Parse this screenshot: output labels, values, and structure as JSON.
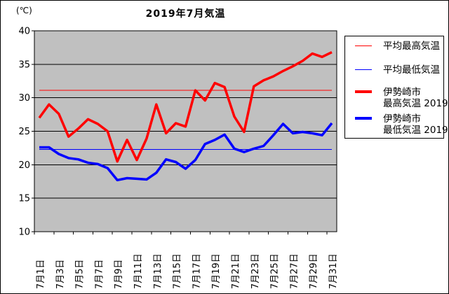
{
  "title": "2019年7月気温",
  "unit_label": "(℃)",
  "legend": {
    "avg_max": "平均最高気温",
    "avg_min": "平均最低気温",
    "max_2019_line1": "伊勢崎市",
    "max_2019_line2": "最高気温 2019",
    "min_2019_line1": "伊勢崎市",
    "min_2019_line2": "最低気温 2019"
  },
  "chart_data": {
    "type": "line",
    "title": "2019年7月気温",
    "ylabel": "(℃)",
    "ylim": [
      10,
      40
    ],
    "ytick_labels": [
      "40",
      "35",
      "30",
      "25",
      "20",
      "15",
      "10"
    ],
    "ytick_values": [
      40,
      35,
      30,
      25,
      20,
      15,
      10
    ],
    "n_days": 31,
    "xtick_labels": [
      "7月1日",
      "7月3日",
      "7月5日",
      "7月7日",
      "7月9日",
      "7月11日",
      "7月13日",
      "7月15日",
      "7月17日",
      "7月19日",
      "7月21日",
      "7月23日",
      "7月25日",
      "7月27日",
      "7月29日",
      "7月31日"
    ],
    "xtick_days": [
      1,
      3,
      5,
      7,
      9,
      11,
      13,
      15,
      17,
      19,
      21,
      23,
      25,
      27,
      29,
      31
    ],
    "grid": true,
    "plot_bg": "#C0C0C0",
    "grid_color": "#000000",
    "legend_position": "right",
    "reference_lines": [
      {
        "name": "平均最高気温",
        "value": 31.1,
        "color": "#FF0000",
        "width": 1
      },
      {
        "name": "平均最低気温",
        "value": 22.3,
        "color": "#0000FF",
        "width": 1
      }
    ],
    "series": [
      {
        "name": "伊勢崎市最高気温2019",
        "color": "#FF0000",
        "width": 3.5,
        "values": [
          27.0,
          29.0,
          27.6,
          24.2,
          25.4,
          26.8,
          26.1,
          25.0,
          20.5,
          23.7,
          20.7,
          23.9,
          29.0,
          24.7,
          26.2,
          25.7,
          31.1,
          29.6,
          32.2,
          31.6,
          27.2,
          24.9,
          31.7,
          32.6,
          33.2,
          34.0,
          34.7,
          35.5,
          36.6,
          36.1,
          36.8
        ]
      },
      {
        "name": "伊勢崎市最低気温2019",
        "color": "#0000FF",
        "width": 3.5,
        "values": [
          22.6,
          22.6,
          21.6,
          21.0,
          20.8,
          20.3,
          20.1,
          19.5,
          17.7,
          18.0,
          17.9,
          17.8,
          18.8,
          20.8,
          20.4,
          19.4,
          20.7,
          23.1,
          23.7,
          24.5,
          22.4,
          21.9,
          22.4,
          22.8,
          24.4,
          26.1,
          24.7,
          24.9,
          24.7,
          24.4,
          26.2
        ]
      }
    ]
  }
}
